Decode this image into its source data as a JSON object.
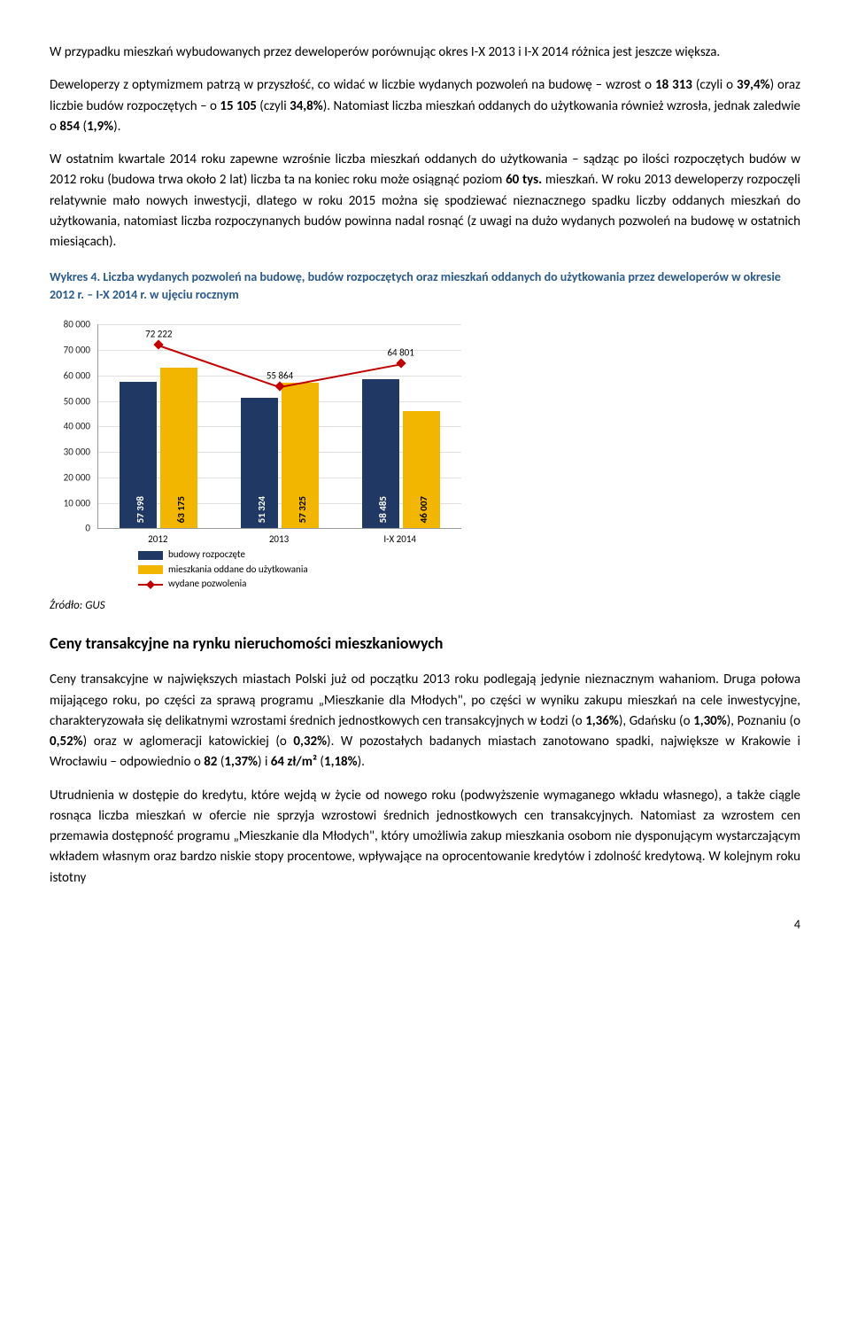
{
  "para1": "W przypadku mieszkań wybudowanych przez deweloperów porównując okres I-X 2013 i I-X 2014 różnica jest jeszcze większa.",
  "para2_a": "Deweloperzy z optymizmem patrzą w przyszłość, co widać w liczbie wydanych pozwoleń na budowę – wzrost o ",
  "para2_b1": "18 313",
  "para2_c": " (czyli o ",
  "para2_b2": "39,4%",
  "para2_d": ") oraz liczbie budów rozpoczętych – o ",
  "para2_b3": "15 105",
  "para2_e": " (czyli ",
  "para2_b4": "34,8%",
  "para2_f": "). Natomiast liczba mieszkań oddanych do użytkowania również wzrosła, jednak zaledwie o ",
  "para2_b5": "854",
  "para2_g": " (",
  "para2_b6": "1,9%",
  "para2_h": ").",
  "para3_a": "W ostatnim kwartale 2014 roku zapewne wzrośnie liczba mieszkań oddanych do użytkowania – sądząc po ilości rozpoczętych budów w 2012 roku (budowa trwa około 2 lat) liczba ta na koniec roku może osiągnąć poziom ",
  "para3_b1": "60 tys.",
  "para3_b": " mieszkań. W roku 2013 deweloperzy rozpoczęli relatywnie mało nowych inwestycji, dlatego w roku 2015 można się spodziewać nieznacznego spadku liczby oddanych mieszkań do użytkowania, natomiast liczba rozpoczynanych budów powinna nadal rosnąć (z uwagi na dużo wydanych pozwoleń na budowę w ostatnich miesiącach).",
  "chart_title": "Wykres 4. Liczba wydanych pozwoleń na budowę, budów rozpoczętych oraz mieszkań oddanych do użytkowania przez deweloperów w okresie 2012 r. – I-X 2014 r. w ujęciu rocznym",
  "chart": {
    "ylim": [
      0,
      80000
    ],
    "ytick_step": 10000,
    "categories": [
      "2012",
      "2013",
      "I-X 2014"
    ],
    "series": {
      "budowy": {
        "values": [
          57398,
          51324,
          58485
        ],
        "color": "#203864",
        "labels": [
          "57 398",
          "51 324",
          "58 485"
        ]
      },
      "mieszkania": {
        "values": [
          63175,
          57325,
          46007
        ],
        "color": "#f2b600",
        "labels": [
          "63 175",
          "57 325",
          "46 007"
        ]
      },
      "pozwolenia": {
        "values": [
          72222,
          55864,
          64801
        ],
        "color": "#c00000",
        "labels": [
          "72 222",
          "55 864",
          "64 801"
        ]
      }
    },
    "legend": {
      "budowy": "budowy rozpoczęte",
      "mieszkania": "mieszkania oddane do użytkowania",
      "pozwolenia": "wydane pozwolenia"
    },
    "yticks_fmt": [
      "0",
      "10 000",
      "20 000",
      "30 000",
      "40 000",
      "50 000",
      "60 000",
      "70 000",
      "80 000"
    ]
  },
  "source": "Źródło: GUS",
  "section_heading": "Ceny transakcyjne na rynku nieruchomości mieszkaniowych",
  "para4_a": "Ceny transakcyjne w największych miastach Polski już od początku 2013 roku podlegają jedynie nieznacznym wahaniom. Druga połowa mijającego roku, po części za sprawą programu „Mieszkanie dla Młodych\", po części w wyniku zakupu mieszkań na cele inwestycyjne, charakteryzowała się delikatnymi wzrostami średnich jednostkowych cen transakcyjnych w Łodzi (o ",
  "para4_b1": "1,36%",
  "para4_b": "), Gdańsku (o ",
  "para4_b2": "1,30%",
  "para4_c": "), Poznaniu (o ",
  "para4_b3": "0,52%",
  "para4_d": ") oraz w aglomeracji katowickiej (o ",
  "para4_b4": "0,32%",
  "para4_e": "). W pozostałych badanych miastach zanotowano spadki, największe w Krakowie i Wrocławiu – odpowiednio o ",
  "para4_b5": "82",
  "para4_f": " (",
  "para4_b6": "1,37%",
  "para4_g": ") i ",
  "para4_b7": "64 zł/m²",
  "para4_h": " (",
  "para4_b8": "1,18%",
  "para4_i": ").",
  "para5": "Utrudnienia w dostępie do kredytu, które wejdą w życie od nowego roku (podwyższenie wymaganego wkładu własnego), a także ciągle rosnąca liczba mieszkań w ofercie nie sprzyja wzrostowi średnich jednostkowych cen transakcyjnych. Natomiast za wzrostem cen przemawia dostępność programu „Mieszkanie dla Młodych\", który umożliwia zakup mieszkania osobom nie dysponującym wystarczającym wkładem własnym oraz bardzo niskie stopy procentowe, wpływające na oprocentowanie kredytów i zdolność kredytową. W kolejnym roku istotny",
  "page_number": "4"
}
